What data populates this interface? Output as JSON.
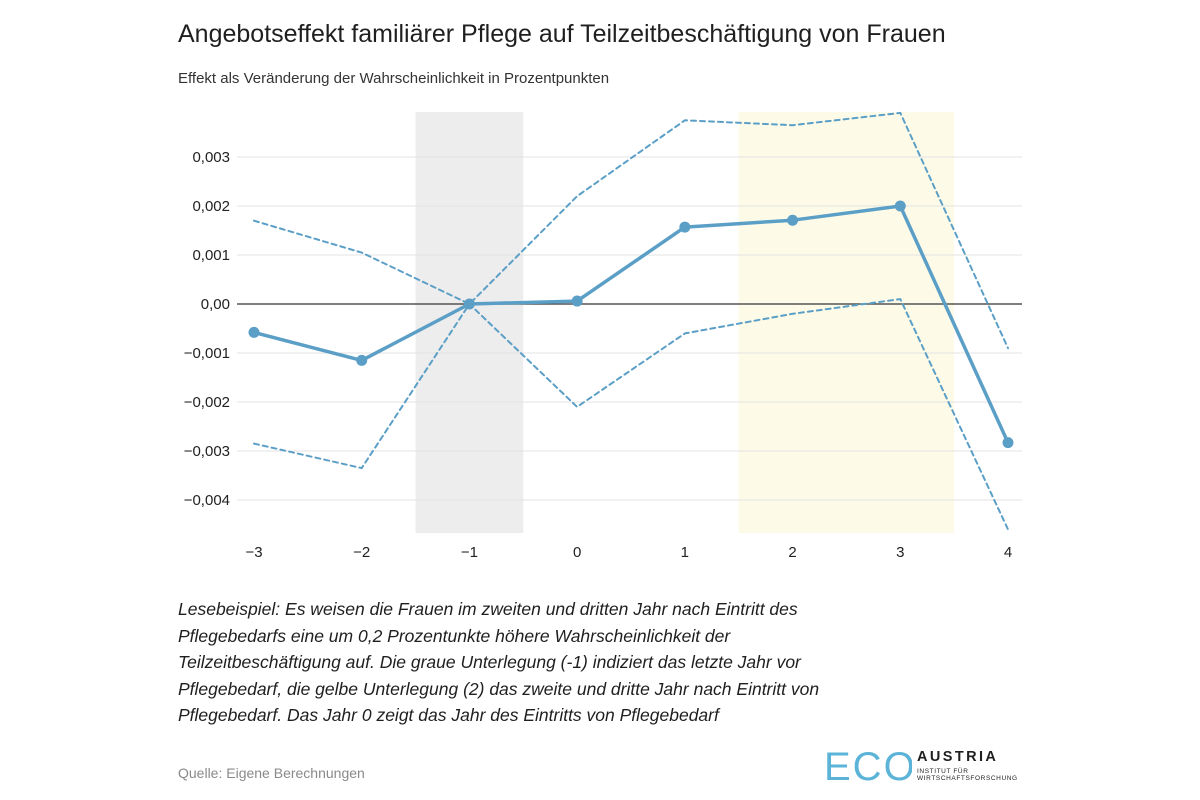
{
  "header": {
    "title": "Angebotseffekt familiärer Pflege auf Teilzeitbeschäftigung von Frauen",
    "subtitle": "Effekt als Veränderung der Wahrscheinlichkeit in Prozentpunkten"
  },
  "chart_data": {
    "type": "line",
    "x": [
      -3,
      -2,
      -1,
      0,
      1,
      2,
      3,
      4
    ],
    "x_tick_labels": [
      "−3",
      "−2",
      "−1",
      "0",
      "1",
      "2",
      "3",
      "4"
    ],
    "y_ticks": [
      0.003,
      0.002,
      0.001,
      0,
      -0.001,
      -0.002,
      -0.003,
      -0.004
    ],
    "y_tick_labels": [
      "0,003",
      "0,002",
      "0,001",
      "0,00",
      "−0,001",
      "−0,002",
      "−0,003",
      "−0,004"
    ],
    "ylim": [
      -0.0046,
      0.0039
    ],
    "xlim": [
      -3,
      4
    ],
    "series": [
      {
        "role": "estimate",
        "style": "solid",
        "markers": true,
        "values": [
          -0.00058,
          -0.00115,
          0.0,
          6e-05,
          0.00157,
          0.00171,
          0.002,
          -0.00283
        ]
      },
      {
        "role": "upper-bound",
        "style": "dashed",
        "values": [
          0.0017,
          0.00105,
          0.0,
          0.0022,
          0.00375,
          0.00365,
          0.0039,
          -0.0009
        ]
      },
      {
        "role": "lower-bound",
        "style": "dashed",
        "values": [
          -0.00285,
          -0.00335,
          0.0,
          -0.0021,
          -0.0006,
          -0.0002,
          0.0001,
          -0.0046
        ]
      }
    ],
    "shaded_regions": [
      {
        "from": -1.5,
        "to": -0.5,
        "color": "#ededed"
      },
      {
        "from": 1.5,
        "to": 3.5,
        "color": "#fdfbe8"
      }
    ],
    "colors": {
      "line": "#5b9fc7",
      "grid": "#e3e3e3",
      "zero_line": "#555555"
    },
    "grid": true
  },
  "note": {
    "text": "Lesebeispiel: Es weisen die Frauen im zweiten und dritten Jahr nach Eintritt des Pflegebedarfs eine um 0,2 Prozentunkte höhere Wahrscheinlichkeit der Teilzeitbeschäftigung auf. Die graue Unterlegung (-1) indiziert das letzte Jahr vor Pflegebedarf, die gelbe Unterlegung (2) das zweite und dritte Jahr nach Eintritt von Pflegebedarf. Das Jahr 0 zeigt das Jahr des Eintritts von Pflegebedarf"
  },
  "source": {
    "text": "Quelle: Eigene Berechnungen"
  },
  "logo": {
    "eco": "ECO",
    "austria": "AUSTRIA",
    "institute": "INSTITUT FÜR WIRTSCHAFTSFORSCHUNG",
    "color": "#5bb4d8"
  }
}
